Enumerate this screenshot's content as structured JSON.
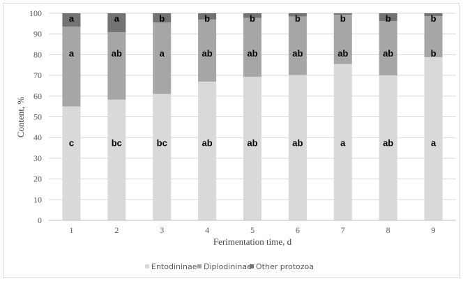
{
  "chart_data": {
    "type": "bar",
    "stacked": true,
    "percent": true,
    "categories": [
      "1",
      "2",
      "3",
      "4",
      "5",
      "6",
      "7",
      "8",
      "9"
    ],
    "series": [
      {
        "name": "Entodininae",
        "color": "#d9d9d9",
        "values": [
          55,
          58.3,
          61,
          67,
          69.3,
          70.2,
          75.5,
          70,
          78.8
        ],
        "labels": [
          "c",
          "bc",
          "bc",
          "ab",
          "ab",
          "ab",
          "a",
          "ab",
          "a"
        ]
      },
      {
        "name": "Diplodininae",
        "color": "#a6a6a6",
        "values": [
          38.5,
          32.6,
          34.5,
          30,
          28.5,
          28.3,
          23.8,
          26.2,
          19.8
        ],
        "labels": [
          "a",
          "ab",
          "a",
          "ab",
          "ab",
          "ab",
          "ab",
          "ab",
          "b"
        ]
      },
      {
        "name": "Other protozoa",
        "color": "#737373",
        "values": [
          6.5,
          9.1,
          4.5,
          3,
          2.2,
          1.5,
          0.7,
          3.8,
          1.4
        ],
        "labels": [
          "a",
          "a",
          "b",
          "b",
          "b",
          "b",
          "b",
          "b",
          "b"
        ]
      }
    ],
    "xlabel": "Ferimentation time, d",
    "ylabel": "Content, %",
    "ylim": [
      0,
      100
    ],
    "yticks": [
      0,
      10,
      20,
      30,
      40,
      50,
      60,
      70,
      80,
      90,
      100
    ],
    "grid": true,
    "legend": "bottom"
  }
}
